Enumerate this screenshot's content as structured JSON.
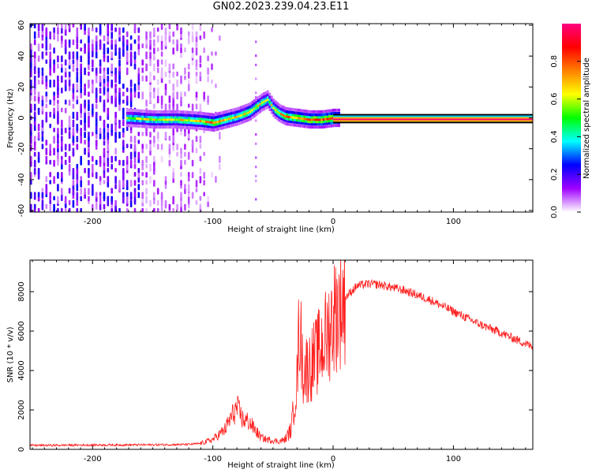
{
  "title": "GN02.2023.239.04.23.E11",
  "chart_data": [
    {
      "type": "heatmap",
      "title": "GN02.2023.239.04.23.E11",
      "xlabel": "Height of straight line (km)",
      "ylabel": "Frequency (Hz)",
      "xlim": [
        -252,
        166
      ],
      "ylim": [
        -61,
        61
      ],
      "xticks": [
        -200,
        -100,
        0,
        100
      ],
      "yticks": [
        -60,
        -40,
        -20,
        0,
        20,
        40,
        60
      ],
      "colorbar": {
        "label": "Normalized spectral amplitude",
        "range": [
          0,
          1
        ],
        "ticks": [
          "0.0",
          "0.2",
          "0.4",
          "0.6",
          "0.8"
        ],
        "colors": [
          "#ffffff",
          "#a000ff",
          "#0000ff",
          "#00ffff",
          "#00ff00",
          "#ffff00",
          "#ff8000",
          "#ff0000",
          "#ff0080"
        ]
      },
      "noise_region": {
        "x": [
          -252,
          -110
        ],
        "amplitude": [
          0.0,
          0.25
        ]
      },
      "signal_track": {
        "x": [
          -170,
          -150,
          -130,
          -110,
          -100,
          -90,
          -80,
          -70,
          -60,
          -55,
          -50,
          -45,
          -40,
          -30,
          -20,
          -10,
          0,
          50,
          100,
          166
        ],
        "frequency": [
          0,
          -1,
          -1,
          -2,
          -3,
          -1,
          1,
          4,
          10,
          12,
          6,
          3,
          1,
          0,
          -1,
          -1,
          0,
          0,
          0,
          0
        ],
        "amplitude": [
          0.6,
          0.7,
          0.7,
          0.75,
          0.8,
          0.75,
          0.7,
          0.75,
          0.7,
          0.65,
          0.7,
          0.75,
          0.8,
          0.85,
          0.9,
          0.95,
          1.0,
          1.0,
          1.0,
          1.0
        ]
      },
      "grid": false
    },
    {
      "type": "line",
      "xlabel": "Height of straight line (km)",
      "ylabel": "SNR (10 * v/v)",
      "xlim": [
        -252,
        166
      ],
      "ylim": [
        0,
        9600
      ],
      "xticks": [
        -200,
        -100,
        0,
        100
      ],
      "yticks": [
        0,
        2000,
        4000,
        6000,
        8000
      ],
      "color": "#ff0000",
      "grid": false,
      "series": [
        {
          "x": [
            -252,
            -200,
            -150,
            -120,
            -110,
            -100,
            -90,
            -85,
            -80,
            -75,
            -70,
            -65,
            -60,
            -55,
            -50,
            -45,
            -40,
            -35,
            -30,
            -28,
            -25,
            -20,
            -15,
            -10,
            -5,
            0,
            10,
            20,
            30,
            40,
            50,
            60,
            80,
            100,
            120,
            140,
            166
          ],
          "y": [
            200,
            220,
            230,
            250,
            300,
            500,
            1000,
            1600,
            2100,
            1500,
            1400,
            1000,
            600,
            500,
            450,
            400,
            500,
            1000,
            3500,
            6500,
            4000,
            4200,
            4600,
            5200,
            5800,
            6700,
            7700,
            8300,
            8400,
            8350,
            8200,
            8050,
            7600,
            7000,
            6400,
            5900,
            5200
          ]
        }
      ]
    }
  ]
}
